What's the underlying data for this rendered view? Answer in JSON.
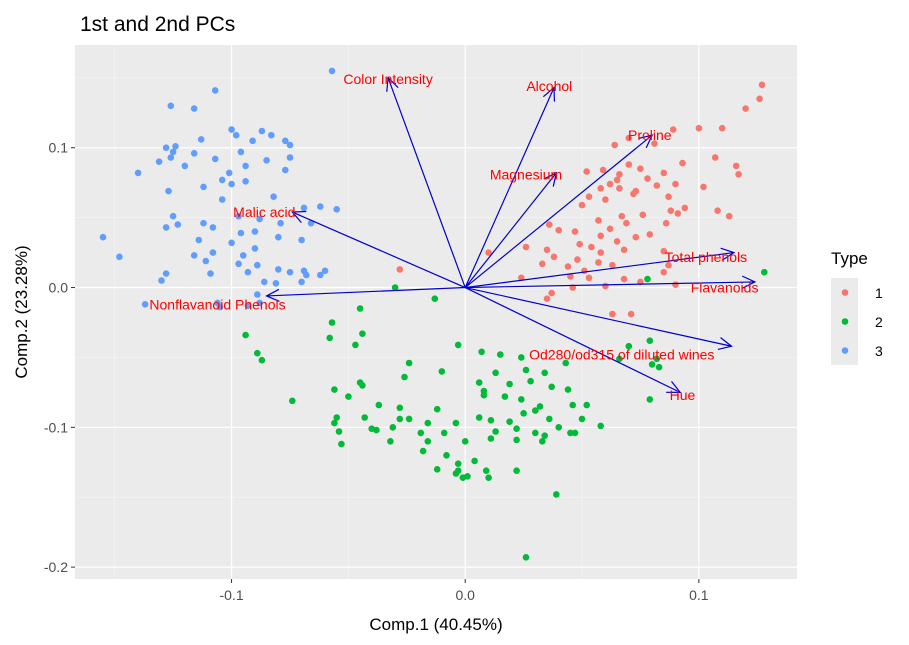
{
  "chart_data": {
    "type": "scatter",
    "title": "1st and 2nd PCs",
    "xlabel": "Comp.1 (40.45%)",
    "ylabel": "Comp.2 (23.28%)",
    "xlim": [
      -0.167,
      0.142
    ],
    "ylim": [
      -0.2085,
      0.1735
    ],
    "x_ticks": [
      -0.1,
      0.0,
      0.1
    ],
    "x_tick_labels": [
      "-0.1",
      "0.0",
      "0.1"
    ],
    "y_ticks": [
      -0.2,
      -0.1,
      0.0,
      0.1
    ],
    "y_tick_labels": [
      "-0.2",
      "-0.1",
      "0.0",
      "0.1"
    ],
    "grid": true,
    "legend": {
      "title": "Type",
      "position": "right",
      "entries": [
        {
          "label": "1",
          "color": "#F8766D"
        },
        {
          "label": "2",
          "color": "#00BA38"
        },
        {
          "label": "3",
          "color": "#619CFF"
        }
      ]
    },
    "series": [
      {
        "name": "1",
        "color": "#F8766D",
        "points": [
          [
            0.127,
            0.145
          ],
          [
            0.126,
            0.135
          ],
          [
            0.12,
            0.128
          ],
          [
            0.11,
            0.114
          ],
          [
            0.1,
            0.114
          ],
          [
            0.089,
            0.113
          ],
          [
            0.07,
            0.107
          ],
          [
            0.081,
            0.103
          ],
          [
            0.064,
            0.102
          ],
          [
            0.107,
            0.093
          ],
          [
            0.093,
            0.089
          ],
          [
            0.07,
            0.088
          ],
          [
            0.075,
            0.085
          ],
          [
            0.059,
            0.084
          ],
          [
            0.052,
            0.083
          ],
          [
            0.085,
            0.082
          ],
          [
            0.116,
            0.087
          ],
          [
            0.117,
            0.081
          ],
          [
            0.066,
            0.081
          ],
          [
            0.078,
            0.078
          ],
          [
            0.065,
            0.077
          ],
          [
            0.062,
            0.074
          ],
          [
            0.082,
            0.073
          ],
          [
            0.066,
            0.071
          ],
          [
            0.073,
            0.069
          ],
          [
            0.058,
            0.071
          ],
          [
            0.09,
            0.074
          ],
          [
            0.102,
            0.072
          ],
          [
            0.072,
            0.067
          ],
          [
            0.087,
            0.065
          ],
          [
            0.053,
            0.065
          ],
          [
            0.06,
            0.063
          ],
          [
            0.05,
            0.059
          ],
          [
            0.108,
            0.055
          ],
          [
            0.094,
            0.057
          ],
          [
            0.088,
            0.055
          ],
          [
            0.076,
            0.052
          ],
          [
            0.091,
            0.053
          ],
          [
            0.067,
            0.051
          ],
          [
            0.113,
            0.051
          ],
          [
            0.086,
            0.046
          ],
          [
            0.057,
            0.048
          ],
          [
            0.069,
            0.046
          ],
          [
            0.036,
            0.045
          ],
          [
            0.062,
            0.042
          ],
          [
            0.04,
            0.041
          ],
          [
            0.079,
            0.038
          ],
          [
            0.073,
            0.036
          ],
          [
            0.047,
            0.04
          ],
          [
            0.058,
            0.037
          ],
          [
            0.065,
            0.033
          ],
          [
            0.049,
            0.031
          ],
          [
            0.054,
            0.029
          ],
          [
            0.068,
            0.027
          ],
          [
            0.085,
            0.026
          ],
          [
            0.058,
            0.025
          ],
          [
            0.038,
            0.022
          ],
          [
            0.048,
            0.02
          ],
          [
            0.057,
            0.018
          ],
          [
            0.063,
            0.016
          ],
          [
            0.087,
            0.016
          ],
          [
            0.085,
            0.011
          ],
          [
            0.051,
            0.012
          ],
          [
            0.033,
            0.017
          ],
          [
            0.045,
            0.008
          ],
          [
            0.053,
            0.007
          ],
          [
            0.068,
            0.006
          ],
          [
            0.075,
            0.004
          ],
          [
            0.09,
            0.002
          ],
          [
            0.06,
            0.001
          ],
          [
            0.046,
            -0.0
          ],
          [
            0.037,
            -0.004
          ],
          [
            0.035,
            0.027
          ],
          [
            0.026,
            0.029
          ],
          [
            0.044,
            0.015
          ],
          [
            0.024,
            0.007
          ],
          [
            0.01,
            0.025
          ],
          [
            0.071,
            -0.019
          ],
          [
            0.063,
            -0.019
          ],
          [
            -0.028,
            0.013
          ],
          [
            0.035,
            -0.008
          ]
        ]
      },
      {
        "name": "2",
        "color": "#00BA38",
        "points": [
          [
            0.128,
            0.011
          ],
          [
            0.078,
            0.006
          ],
          [
            0.07,
            -0.042
          ],
          [
            0.079,
            -0.038
          ],
          [
            0.066,
            -0.051
          ],
          [
            0.082,
            -0.051
          ],
          [
            0.08,
            -0.055
          ],
          [
            0.083,
            -0.057
          ],
          [
            0.079,
            -0.08
          ],
          [
            -0.03,
            0.0
          ],
          [
            -0.013,
            -0.008
          ],
          [
            -0.045,
            -0.015
          ],
          [
            -0.057,
            -0.025
          ],
          [
            -0.058,
            -0.036
          ],
          [
            -0.044,
            -0.033
          ],
          [
            -0.087,
            -0.052
          ],
          [
            -0.047,
            -0.041
          ],
          [
            -0.003,
            -0.041
          ],
          [
            -0.024,
            -0.054
          ],
          [
            -0.01,
            -0.06
          ],
          [
            0.007,
            -0.046
          ],
          [
            0.015,
            -0.048
          ],
          [
            0.024,
            -0.05
          ],
          [
            0.026,
            -0.059
          ],
          [
            0.034,
            -0.061
          ],
          [
            0.043,
            -0.054
          ],
          [
            0.037,
            -0.071
          ],
          [
            0.013,
            -0.061
          ],
          [
            0.028,
            -0.067
          ],
          [
            0.044,
            -0.073
          ],
          [
            0.006,
            -0.068
          ],
          [
            0.019,
            -0.069
          ],
          [
            0.008,
            -0.074
          ],
          [
            -0.026,
            -0.064
          ],
          [
            -0.045,
            -0.068
          ],
          [
            -0.044,
            -0.07
          ],
          [
            -0.056,
            -0.073
          ],
          [
            -0.05,
            -0.078
          ],
          [
            -0.037,
            -0.084
          ],
          [
            -0.028,
            -0.086
          ],
          [
            -0.012,
            -0.087
          ],
          [
            0.008,
            -0.077
          ],
          [
            0.017,
            -0.078
          ],
          [
            0.024,
            -0.08
          ],
          [
            0.032,
            -0.085
          ],
          [
            0.046,
            -0.084
          ],
          [
            0.03,
            -0.088
          ],
          [
            0.025,
            -0.09
          ],
          [
            0.052,
            -0.084
          ],
          [
            -0.028,
            -0.094
          ],
          [
            -0.043,
            -0.093
          ],
          [
            -0.055,
            -0.093
          ],
          [
            -0.024,
            -0.094
          ],
          [
            -0.016,
            -0.097
          ],
          [
            -0.004,
            -0.097
          ],
          [
            0.006,
            -0.093
          ],
          [
            0.011,
            -0.095
          ],
          [
            0.019,
            -0.096
          ],
          [
            0.036,
            -0.094
          ],
          [
            0.05,
            -0.094
          ],
          [
            0.013,
            -0.103
          ],
          [
            0.04,
            -0.1
          ],
          [
            0.022,
            -0.101
          ],
          [
            0.03,
            -0.104
          ],
          [
            0.045,
            -0.104
          ],
          [
            -0.074,
            -0.081
          ],
          [
            -0.056,
            -0.097
          ],
          [
            -0.04,
            -0.101
          ],
          [
            -0.038,
            -0.102
          ],
          [
            -0.031,
            -0.1
          ],
          [
            -0.019,
            -0.104
          ],
          [
            -0.009,
            -0.104
          ],
          [
            -0.032,
            -0.11
          ],
          [
            -0.016,
            -0.11
          ],
          [
            0.0,
            -0.11
          ],
          [
            0.011,
            -0.108
          ],
          [
            0.022,
            -0.109
          ],
          [
            0.033,
            -0.11
          ],
          [
            0.034,
            -0.106
          ],
          [
            0.047,
            -0.104
          ],
          [
            0.058,
            -0.099
          ],
          [
            -0.054,
            -0.103
          ],
          [
            -0.053,
            -0.112
          ],
          [
            -0.018,
            -0.117
          ],
          [
            -0.008,
            -0.12
          ],
          [
            0.004,
            -0.124
          ],
          [
            -0.003,
            -0.126
          ],
          [
            -0.012,
            -0.13
          ],
          [
            -0.004,
            -0.133
          ],
          [
            0.009,
            -0.131
          ],
          [
            0.022,
            -0.131
          ],
          [
            0.001,
            -0.135
          ],
          [
            0.01,
            -0.136
          ],
          [
            -0.001,
            -0.136
          ],
          [
            -0.003,
            -0.131
          ],
          [
            0.039,
            -0.148
          ],
          [
            -0.094,
            -0.034
          ],
          [
            0.026,
            -0.193
          ],
          [
            -0.089,
            -0.047
          ]
        ]
      },
      {
        "name": "3",
        "color": "#619CFF",
        "points": [
          [
            -0.057,
            0.155
          ],
          [
            -0.107,
            0.141
          ],
          [
            -0.126,
            0.13
          ],
          [
            -0.116,
            0.128
          ],
          [
            -0.1,
            0.113
          ],
          [
            -0.087,
            0.112
          ],
          [
            -0.098,
            0.109
          ],
          [
            -0.083,
            0.109
          ],
          [
            -0.077,
            0.105
          ],
          [
            -0.091,
            0.105
          ],
          [
            -0.075,
            0.102
          ],
          [
            -0.113,
            0.106
          ],
          [
            -0.124,
            0.101
          ],
          [
            -0.128,
            0.1
          ],
          [
            -0.125,
            0.097
          ],
          [
            -0.096,
            0.097
          ],
          [
            -0.107,
            0.092
          ],
          [
            -0.075,
            0.093
          ],
          [
            -0.085,
            0.091
          ],
          [
            -0.116,
            0.096
          ],
          [
            -0.126,
            0.093
          ],
          [
            -0.131,
            0.09
          ],
          [
            -0.12,
            0.087
          ],
          [
            -0.094,
            0.087
          ],
          [
            -0.077,
            0.084
          ],
          [
            -0.14,
            0.082
          ],
          [
            -0.101,
            0.082
          ],
          [
            -0.104,
            0.077
          ],
          [
            -0.094,
            0.076
          ],
          [
            -0.1,
            0.074
          ],
          [
            -0.112,
            0.072
          ],
          [
            -0.127,
            0.069
          ],
          [
            -0.082,
            0.065
          ],
          [
            -0.104,
            0.063
          ],
          [
            -0.062,
            0.058
          ],
          [
            -0.069,
            0.057
          ],
          [
            -0.125,
            0.051
          ],
          [
            -0.112,
            0.046
          ],
          [
            -0.097,
            0.051
          ],
          [
            -0.088,
            0.049
          ],
          [
            -0.079,
            0.046
          ],
          [
            -0.066,
            0.046
          ],
          [
            -0.055,
            0.056
          ],
          [
            -0.128,
            0.043
          ],
          [
            -0.123,
            0.045
          ],
          [
            -0.108,
            0.043
          ],
          [
            -0.096,
            0.039
          ],
          [
            -0.09,
            0.04
          ],
          [
            -0.08,
            0.036
          ],
          [
            -0.07,
            0.034
          ],
          [
            -0.155,
            0.036
          ],
          [
            -0.114,
            0.034
          ],
          [
            -0.1,
            0.032
          ],
          [
            -0.09,
            0.028
          ],
          [
            -0.095,
            0.023
          ],
          [
            -0.108,
            0.025
          ],
          [
            -0.116,
            0.023
          ],
          [
            -0.111,
            0.019
          ],
          [
            -0.097,
            0.017
          ],
          [
            -0.089,
            0.016
          ],
          [
            -0.08,
            0.013
          ],
          [
            -0.069,
            0.012
          ],
          [
            -0.075,
            0.011
          ],
          [
            -0.068,
            0.009
          ],
          [
            -0.062,
            0.009
          ],
          [
            -0.07,
            0.004
          ],
          [
            -0.086,
            0.004
          ],
          [
            -0.081,
            0.003
          ],
          [
            -0.093,
            0.011
          ],
          [
            -0.109,
            0.01
          ],
          [
            -0.06,
            0.012
          ],
          [
            -0.128,
            0.01
          ],
          [
            -0.13,
            0.005
          ],
          [
            -0.148,
            0.022
          ],
          [
            -0.089,
            -0.005
          ],
          [
            -0.106,
            -0.011
          ],
          [
            -0.137,
            -0.012
          ],
          [
            -0.088,
            -0.011
          ],
          [
            -0.093,
            -0.013
          ],
          [
            -0.105,
            -0.014
          ]
        ]
      }
    ],
    "arrows": [
      {
        "name": "Color Intensity",
        "end": [
          -0.033,
          0.15
        ],
        "label": [
          -0.033,
          0.149
        ]
      },
      {
        "name": "Alcohol",
        "end": [
          0.038,
          0.143
        ],
        "label": [
          0.036,
          0.144
        ]
      },
      {
        "name": "Proline",
        "end": [
          0.08,
          0.109
        ],
        "label": [
          0.079,
          0.109
        ]
      },
      {
        "name": "Magnesium",
        "end": [
          0.039,
          0.082
        ],
        "label": [
          0.026,
          0.081
        ]
      },
      {
        "name": "Malic acid",
        "end": [
          -0.074,
          0.054
        ],
        "label": [
          -0.086,
          0.054
        ]
      },
      {
        "name": "Total phenols",
        "end": [
          0.115,
          0.025
        ],
        "label": [
          0.103,
          0.022
        ]
      },
      {
        "name": "Flavanoids",
        "end": [
          0.124,
          0.004
        ],
        "label": [
          0.111,
          0.0
        ]
      },
      {
        "name": "Nonflavanoid Phenols",
        "end": [
          -0.085,
          -0.006
        ],
        "label": [
          -0.106,
          -0.012
        ]
      },
      {
        "name": "Od280/od315 of diluted wines",
        "end": [
          0.114,
          -0.042
        ],
        "label": [
          0.067,
          -0.048
        ]
      },
      {
        "name": "Hue",
        "end": [
          0.092,
          -0.075
        ],
        "label": [
          0.093,
          -0.077
        ]
      }
    ],
    "arrow_color": "#0000CD",
    "label_color": "#FF0000"
  }
}
